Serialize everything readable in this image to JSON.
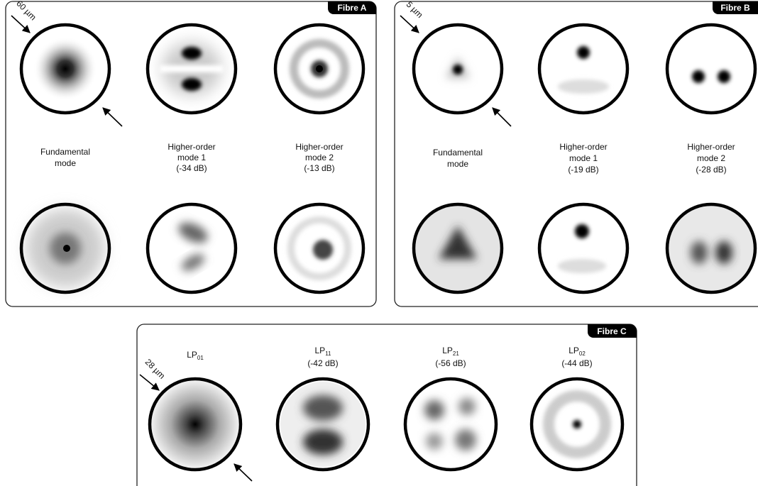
{
  "panels": [
    {
      "title": "Fibre A",
      "scale": "60 µm",
      "modes": [
        {
          "lines": [
            "Fundamental",
            "mode"
          ]
        },
        {
          "lines": [
            "Higher-order",
            "mode 1",
            "(-34 dB)"
          ]
        },
        {
          "lines": [
            "Higher-order",
            "mode 2",
            "(-13 dB)"
          ]
        }
      ]
    },
    {
      "title": "Fibre B",
      "scale": "5 µm",
      "modes": [
        {
          "lines": [
            "Fundamental",
            "mode"
          ]
        },
        {
          "lines": [
            "Higher-order",
            "mode 1",
            "(-19 dB)"
          ]
        },
        {
          "lines": [
            "Higher-order",
            "mode 2",
            "(-28 dB)"
          ]
        }
      ]
    },
    {
      "title": "Fibre C",
      "scale": "28 µm",
      "modes": [
        {
          "label": "LP",
          "sub": "01"
        },
        {
          "label": "LP",
          "sub": "11",
          "loss": "(-42 dB)"
        },
        {
          "label": "LP",
          "sub": "21",
          "loss": "(-56 dB)"
        },
        {
          "label": "LP",
          "sub": "02",
          "loss": "(-44 dB)"
        }
      ]
    }
  ]
}
